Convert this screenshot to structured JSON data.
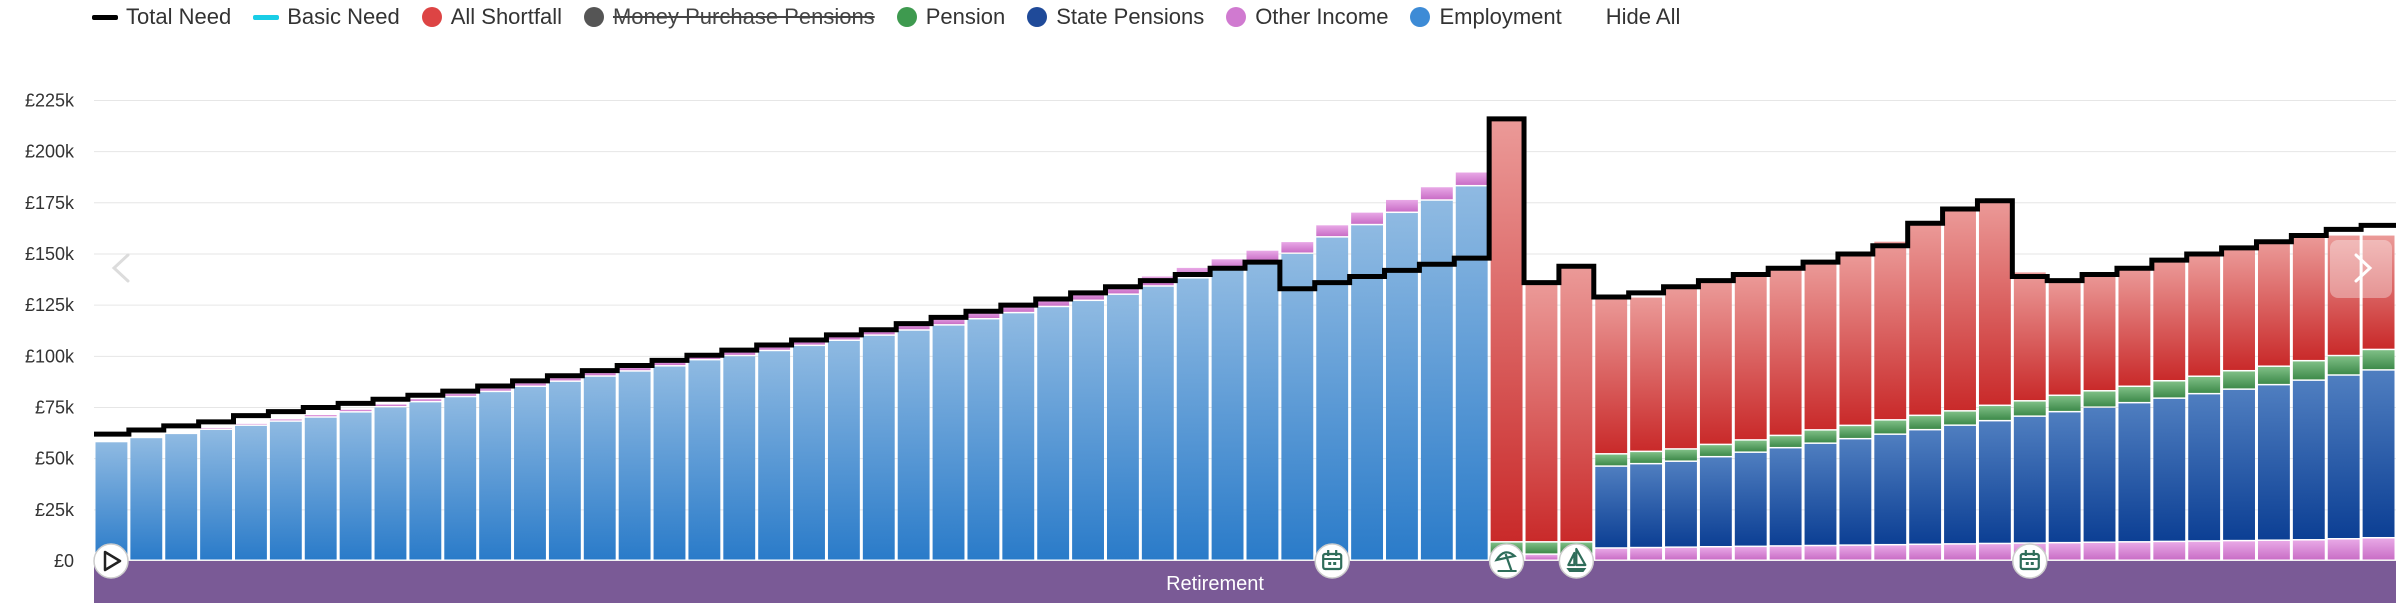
{
  "legend": {
    "items": [
      {
        "label": "Total Need",
        "kind": "line",
        "color": "#000000",
        "hidden": false
      },
      {
        "label": "Basic Need",
        "kind": "line",
        "color": "#19cde6",
        "hidden": false
      },
      {
        "label": "All Shortfall",
        "kind": "dot",
        "color": "#dd4444",
        "hidden": false
      },
      {
        "label": "Money Purchase Pensions",
        "kind": "dot",
        "color": "#555555",
        "hidden": true
      },
      {
        "label": "Pension",
        "kind": "dot",
        "color": "#3e9a4f",
        "hidden": false
      },
      {
        "label": "State Pensions",
        "kind": "dot",
        "color": "#1f4a99",
        "hidden": false
      },
      {
        "label": "Other Income",
        "kind": "dot",
        "color": "#d07ad0",
        "hidden": false
      },
      {
        "label": "Employment",
        "kind": "dot",
        "color": "#3d8bd6",
        "hidden": false
      }
    ],
    "hide_all_label": "Hide All"
  },
  "band": {
    "label": "Retirement",
    "color": "#7a5a96"
  },
  "colors": {
    "employment_top": "#8fbae2",
    "employment_bottom": "#2a7bc9",
    "state_top": "#4f7ec0",
    "state_bottom": "#0c3f94",
    "pension_top": "#7fbf86",
    "pension_bottom": "#3e8a4a",
    "other_top": "#e8a8e6",
    "other_bottom": "#c96ec6",
    "shortfall_top": "#eb9a98",
    "shortfall_bottom": "#c92a2a",
    "need_line": "#000000"
  },
  "icons": [
    {
      "index": 0,
      "name": "play-icon"
    },
    {
      "index": 35,
      "name": "calendar-icon"
    },
    {
      "index": 40,
      "name": "beach-umbrella-icon"
    },
    {
      "index": 42,
      "name": "sailboat-icon"
    },
    {
      "index": 55,
      "name": "calendar-icon"
    }
  ],
  "chart_data": {
    "type": "bar",
    "stacked": true,
    "ylim": [
      0,
      235000
    ],
    "yticks": [
      0,
      25000,
      50000,
      75000,
      100000,
      125000,
      150000,
      175000,
      200000,
      225000
    ],
    "ytick_labels": [
      "£0",
      "£25k",
      "£50k",
      "£75k",
      "£100k",
      "£125k",
      "£150k",
      "£175k",
      "£200k",
      "£225k"
    ],
    "grid": true,
    "retirement_start_index": 40,
    "series": [
      {
        "name": "Employment",
        "values": [
          58000,
          60000,
          62000,
          64000,
          66000,
          68000,
          70000,
          72500,
          75000,
          77500,
          80000,
          82500,
          85000,
          87500,
          90000,
          92500,
          95000,
          98000,
          100000,
          102500,
          105000,
          107500,
          110000,
          112500,
          115000,
          118000,
          121000,
          124000,
          127000,
          130000,
          134000,
          138000,
          142000,
          146000,
          150000,
          158000,
          164000,
          170000,
          176000,
          183000,
          0,
          0,
          0,
          0,
          0,
          0,
          0,
          0,
          0,
          0,
          0,
          0,
          0,
          0,
          0,
          0,
          0,
          0,
          0,
          0,
          0,
          0,
          0,
          0,
          0,
          0
        ]
      },
      {
        "name": "Other Income",
        "values": [
          0,
          0,
          0,
          1000,
          1000,
          1200,
          1300,
          1400,
          1500,
          1600,
          1700,
          1800,
          1900,
          2000,
          2200,
          2400,
          2600,
          2800,
          3000,
          3000,
          3200,
          3300,
          3400,
          3600,
          3800,
          4000,
          4200,
          4400,
          4600,
          4800,
          5000,
          5200,
          5400,
          5600,
          5800,
          6000,
          6200,
          6400,
          6600,
          6800,
          3000,
          3000,
          3000,
          6000,
          6200,
          6400,
          6600,
          6800,
          7000,
          7200,
          7400,
          7600,
          7800,
          8000,
          8200,
          8400,
          8600,
          8800,
          9000,
          9200,
          9400,
          9600,
          9800,
          10000,
          10500,
          11000
        ]
      },
      {
        "name": "State Pensions",
        "values": [
          0,
          0,
          0,
          0,
          0,
          0,
          0,
          0,
          0,
          0,
          0,
          0,
          0,
          0,
          0,
          0,
          0,
          0,
          0,
          0,
          0,
          0,
          0,
          0,
          0,
          0,
          0,
          0,
          0,
          0,
          0,
          0,
          0,
          0,
          0,
          0,
          0,
          0,
          0,
          0,
          0,
          0,
          0,
          40000,
          41000,
          42000,
          44000,
          46000,
          48000,
          50000,
          52000,
          54000,
          56000,
          58000,
          60000,
          62000,
          64000,
          66000,
          68000,
          70000,
          72000,
          74000,
          76000,
          78000,
          80000,
          82000
        ]
      },
      {
        "name": "Pension",
        "values": [
          0,
          0,
          0,
          0,
          0,
          0,
          0,
          0,
          0,
          0,
          0,
          0,
          0,
          0,
          0,
          0,
          0,
          0,
          0,
          0,
          0,
          0,
          0,
          0,
          0,
          0,
          0,
          0,
          0,
          0,
          0,
          0,
          0,
          0,
          0,
          0,
          0,
          0,
          0,
          0,
          6000,
          6000,
          6000,
          6000,
          6000,
          6000,
          6000,
          6000,
          6000,
          6500,
          6500,
          7000,
          7000,
          7000,
          7500,
          7500,
          8000,
          8000,
          8000,
          8500,
          8500,
          9000,
          9000,
          9500,
          9500,
          10000
        ]
      },
      {
        "name": "All Shortfall",
        "values": [
          0,
          0,
          0,
          0,
          0,
          0,
          0,
          0,
          0,
          0,
          0,
          0,
          0,
          0,
          0,
          0,
          0,
          0,
          0,
          0,
          0,
          0,
          0,
          0,
          0,
          0,
          0,
          0,
          0,
          0,
          0,
          0,
          0,
          0,
          0,
          0,
          0,
          0,
          0,
          0,
          207000,
          127000,
          135000,
          77000,
          75500,
          78500,
          79400,
          81200,
          82000,
          82300,
          84100,
          87400,
          94200,
          99000,
          100300,
          63100,
          56400,
          58200,
          58000,
          59300,
          59100,
          60400,
          61200,
          61500,
          59000,
          56000
        ]
      },
      {
        "name": "Total Need",
        "type": "line",
        "values": [
          62000,
          64000,
          66000,
          68000,
          71000,
          73000,
          75000,
          77000,
          79000,
          81000,
          83000,
          85500,
          88000,
          90500,
          93000,
          95500,
          98000,
          100500,
          103000,
          105500,
          108000,
          110500,
          113000,
          116000,
          119000,
          122000,
          125000,
          128000,
          131000,
          134000,
          137000,
          140000,
          143000,
          146000,
          133000,
          136000,
          139000,
          142000,
          145000,
          148000,
          216000,
          136000,
          144000,
          129000,
          131000,
          134000,
          137000,
          140000,
          143000,
          146000,
          150000,
          154000,
          165000,
          172000,
          176000,
          139000,
          137000,
          140000,
          143000,
          147000,
          150000,
          153000,
          156000,
          159000,
          162000,
          164000
        ]
      }
    ]
  }
}
